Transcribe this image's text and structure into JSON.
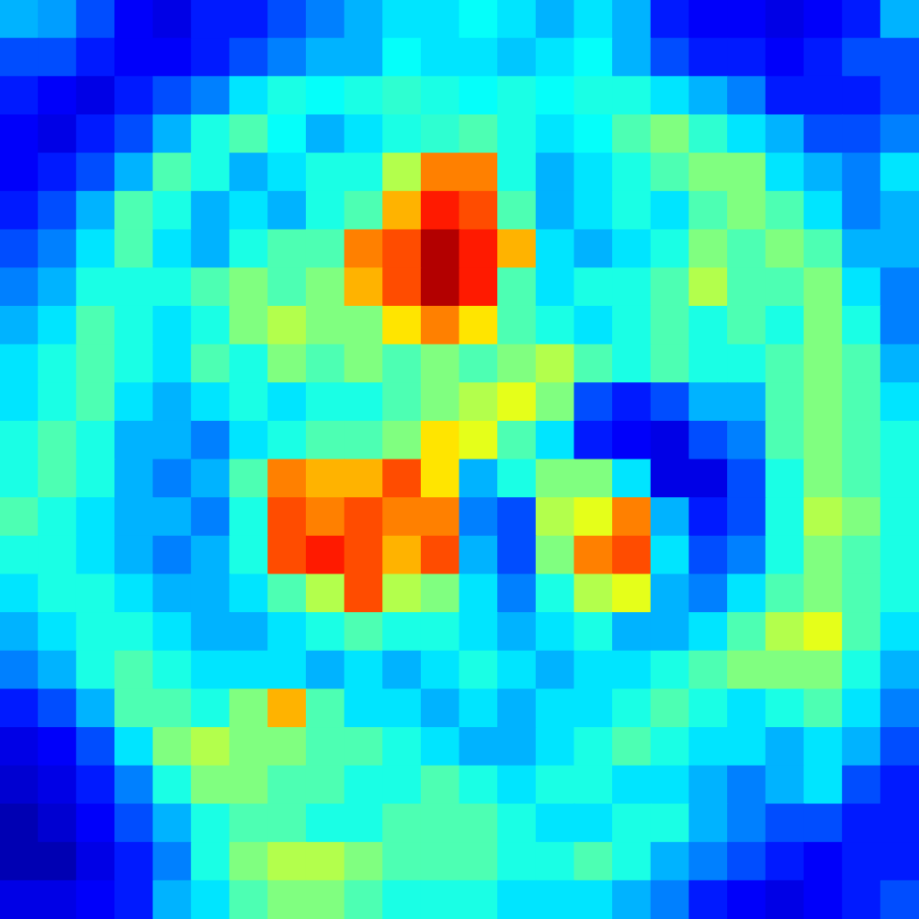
{
  "chart_data": {
    "type": "heatmap",
    "tick_labels": false,
    "color_range": [
      0,
      1
    ],
    "cells": [
      [
        0.3,
        0.28,
        0.2,
        0.12,
        0.1,
        0.15,
        0.15,
        0.2,
        0.25,
        0.3,
        0.35,
        0.35,
        0.38,
        0.35,
        0.3,
        0.35,
        0.3,
        0.15,
        0.12,
        0.12,
        0.1,
        0.12,
        0.15,
        0.3
      ],
      [
        0.2,
        0.2,
        0.15,
        0.12,
        0.12,
        0.15,
        0.2,
        0.25,
        0.3,
        0.3,
        0.38,
        0.35,
        0.35,
        0.32,
        0.35,
        0.38,
        0.3,
        0.2,
        0.15,
        0.15,
        0.12,
        0.15,
        0.2,
        0.2
      ],
      [
        0.15,
        0.12,
        0.1,
        0.15,
        0.2,
        0.25,
        0.35,
        0.4,
        0.38,
        0.4,
        0.42,
        0.4,
        0.38,
        0.4,
        0.38,
        0.4,
        0.4,
        0.35,
        0.3,
        0.25,
        0.15,
        0.15,
        0.15,
        0.2
      ],
      [
        0.12,
        0.1,
        0.15,
        0.2,
        0.3,
        0.4,
        0.45,
        0.38,
        0.3,
        0.35,
        0.4,
        0.42,
        0.45,
        0.4,
        0.35,
        0.38,
        0.45,
        0.5,
        0.42,
        0.35,
        0.3,
        0.2,
        0.2,
        0.25
      ],
      [
        0.12,
        0.15,
        0.2,
        0.3,
        0.45,
        0.4,
        0.3,
        0.35,
        0.4,
        0.4,
        0.55,
        0.75,
        0.75,
        0.4,
        0.3,
        0.35,
        0.4,
        0.45,
        0.5,
        0.5,
        0.35,
        0.3,
        0.25,
        0.35
      ],
      [
        0.15,
        0.2,
        0.3,
        0.45,
        0.4,
        0.3,
        0.35,
        0.3,
        0.4,
        0.45,
        0.7,
        0.85,
        0.8,
        0.45,
        0.3,
        0.35,
        0.4,
        0.35,
        0.45,
        0.5,
        0.45,
        0.35,
        0.25,
        0.3
      ],
      [
        0.2,
        0.25,
        0.35,
        0.45,
        0.35,
        0.3,
        0.4,
        0.45,
        0.45,
        0.75,
        0.8,
        0.95,
        0.85,
        0.7,
        0.35,
        0.3,
        0.35,
        0.4,
        0.5,
        0.45,
        0.5,
        0.45,
        0.3,
        0.3
      ],
      [
        0.25,
        0.3,
        0.4,
        0.4,
        0.4,
        0.45,
        0.5,
        0.45,
        0.5,
        0.7,
        0.8,
        0.95,
        0.85,
        0.45,
        0.35,
        0.4,
        0.4,
        0.45,
        0.55,
        0.45,
        0.45,
        0.5,
        0.35,
        0.25
      ],
      [
        0.3,
        0.35,
        0.45,
        0.4,
        0.35,
        0.4,
        0.5,
        0.55,
        0.5,
        0.5,
        0.65,
        0.75,
        0.65,
        0.45,
        0.4,
        0.35,
        0.4,
        0.45,
        0.4,
        0.45,
        0.4,
        0.5,
        0.4,
        0.25
      ],
      [
        0.35,
        0.4,
        0.45,
        0.4,
        0.35,
        0.45,
        0.4,
        0.5,
        0.45,
        0.5,
        0.45,
        0.5,
        0.45,
        0.5,
        0.55,
        0.45,
        0.4,
        0.45,
        0.4,
        0.4,
        0.45,
        0.5,
        0.45,
        0.3
      ],
      [
        0.35,
        0.4,
        0.45,
        0.35,
        0.3,
        0.35,
        0.4,
        0.35,
        0.4,
        0.4,
        0.45,
        0.5,
        0.55,
        0.6,
        0.5,
        0.2,
        0.15,
        0.2,
        0.3,
        0.3,
        0.45,
        0.5,
        0.45,
        0.35
      ],
      [
        0.4,
        0.45,
        0.4,
        0.3,
        0.3,
        0.25,
        0.35,
        0.4,
        0.45,
        0.45,
        0.5,
        0.65,
        0.6,
        0.45,
        0.35,
        0.15,
        0.12,
        0.1,
        0.2,
        0.25,
        0.45,
        0.5,
        0.45,
        0.4
      ],
      [
        0.4,
        0.45,
        0.4,
        0.3,
        0.25,
        0.3,
        0.45,
        0.75,
        0.7,
        0.7,
        0.8,
        0.65,
        0.3,
        0.4,
        0.5,
        0.5,
        0.35,
        0.1,
        0.1,
        0.2,
        0.4,
        0.5,
        0.45,
        0.4
      ],
      [
        0.45,
        0.4,
        0.35,
        0.3,
        0.3,
        0.25,
        0.4,
        0.8,
        0.75,
        0.8,
        0.75,
        0.75,
        0.25,
        0.2,
        0.55,
        0.6,
        0.75,
        0.3,
        0.15,
        0.2,
        0.4,
        0.55,
        0.5,
        0.4
      ],
      [
        0.4,
        0.4,
        0.35,
        0.3,
        0.25,
        0.3,
        0.4,
        0.8,
        0.85,
        0.8,
        0.7,
        0.8,
        0.3,
        0.2,
        0.5,
        0.75,
        0.8,
        0.35,
        0.2,
        0.25,
        0.4,
        0.5,
        0.45,
        0.4
      ],
      [
        0.35,
        0.4,
        0.4,
        0.35,
        0.3,
        0.3,
        0.35,
        0.45,
        0.55,
        0.8,
        0.55,
        0.5,
        0.35,
        0.25,
        0.4,
        0.55,
        0.6,
        0.3,
        0.25,
        0.35,
        0.45,
        0.5,
        0.45,
        0.4
      ],
      [
        0.3,
        0.35,
        0.4,
        0.4,
        0.35,
        0.3,
        0.3,
        0.35,
        0.4,
        0.45,
        0.4,
        0.4,
        0.35,
        0.3,
        0.35,
        0.4,
        0.3,
        0.3,
        0.35,
        0.45,
        0.55,
        0.6,
        0.45,
        0.35
      ],
      [
        0.25,
        0.3,
        0.4,
        0.45,
        0.4,
        0.35,
        0.35,
        0.35,
        0.3,
        0.35,
        0.3,
        0.35,
        0.4,
        0.35,
        0.3,
        0.35,
        0.35,
        0.4,
        0.45,
        0.5,
        0.5,
        0.5,
        0.4,
        0.3
      ],
      [
        0.15,
        0.2,
        0.3,
        0.45,
        0.45,
        0.4,
        0.5,
        0.7,
        0.45,
        0.35,
        0.35,
        0.3,
        0.35,
        0.3,
        0.35,
        0.35,
        0.4,
        0.45,
        0.4,
        0.35,
        0.4,
        0.45,
        0.35,
        0.25
      ],
      [
        0.1,
        0.12,
        0.2,
        0.35,
        0.5,
        0.55,
        0.5,
        0.5,
        0.45,
        0.45,
        0.4,
        0.35,
        0.3,
        0.3,
        0.35,
        0.4,
        0.45,
        0.4,
        0.35,
        0.35,
        0.3,
        0.35,
        0.3,
        0.2
      ],
      [
        0.08,
        0.1,
        0.15,
        0.25,
        0.4,
        0.5,
        0.5,
        0.45,
        0.45,
        0.4,
        0.4,
        0.45,
        0.4,
        0.35,
        0.4,
        0.4,
        0.35,
        0.35,
        0.3,
        0.25,
        0.3,
        0.35,
        0.2,
        0.15
      ],
      [
        0.05,
        0.08,
        0.12,
        0.2,
        0.3,
        0.4,
        0.45,
        0.45,
        0.4,
        0.4,
        0.45,
        0.45,
        0.45,
        0.4,
        0.35,
        0.35,
        0.4,
        0.4,
        0.3,
        0.25,
        0.2,
        0.2,
        0.15,
        0.15
      ],
      [
        0.05,
        0.05,
        0.1,
        0.15,
        0.25,
        0.4,
        0.5,
        0.55,
        0.55,
        0.5,
        0.45,
        0.45,
        0.45,
        0.4,
        0.4,
        0.45,
        0.4,
        0.3,
        0.25,
        0.2,
        0.15,
        0.12,
        0.15,
        0.15
      ],
      [
        0.1,
        0.1,
        0.12,
        0.15,
        0.3,
        0.35,
        0.45,
        0.5,
        0.5,
        0.45,
        0.4,
        0.4,
        0.4,
        0.35,
        0.35,
        0.35,
        0.3,
        0.25,
        0.15,
        0.12,
        0.1,
        0.12,
        0.15,
        0.2
      ]
    ]
  }
}
